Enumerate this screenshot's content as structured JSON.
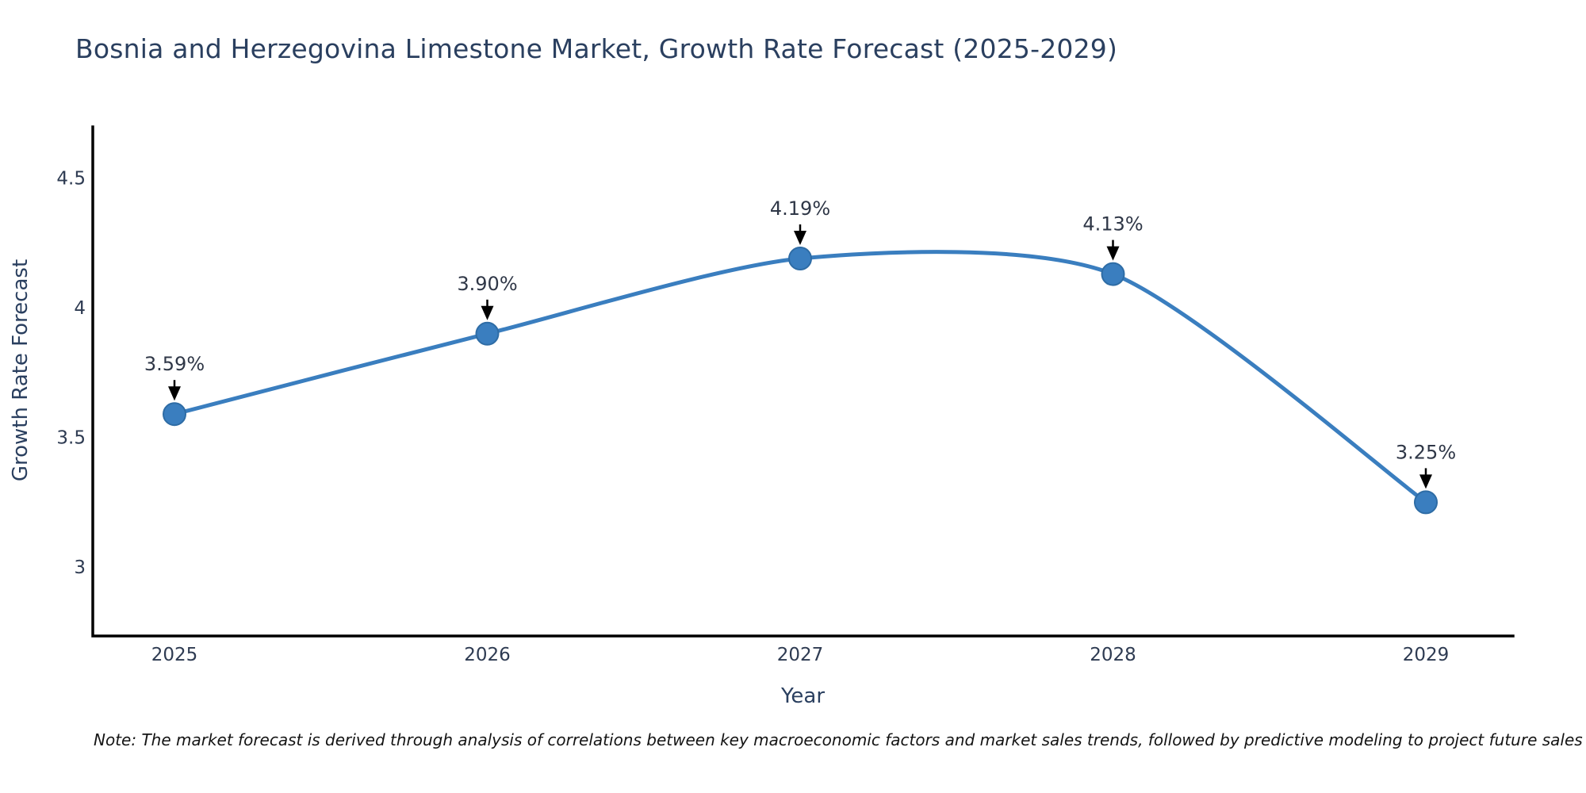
{
  "header": {
    "title": "Bosnia and Herzegovina Limestone Market, Growth Rate Forecast (2025-2029)"
  },
  "chart_data": {
    "type": "line",
    "title": "Bosnia and Herzegovina Limestone Market, Growth Rate Forecast (2025-2029)",
    "xlabel": "Year",
    "ylabel": "Growth Rate Forecast",
    "x": [
      2025,
      2026,
      2027,
      2028,
      2029
    ],
    "values": [
      3.59,
      3.9,
      4.19,
      4.13,
      3.25
    ],
    "point_labels": [
      "3.59%",
      "3.90%",
      "4.19%",
      "4.13%",
      "3.25%"
    ],
    "series_name": "Growth Rate Forecast (%)",
    "yticks": [
      3,
      3.5,
      4,
      4.5
    ],
    "ytick_labels": [
      "3",
      "3.5",
      "4",
      "4.5"
    ],
    "ylim": [
      2.73,
      4.7
    ],
    "grid": false,
    "legend_position": "none",
    "line_color": "#3a7ebf",
    "marker_color": "#3a7ebf",
    "marker_edge_color": "#2e6ca5",
    "arrow_color": "#000000",
    "axis_color": "#000000",
    "note": "Note: The market forecast is derived through analysis of correlations between key macroeconomic factors and market sales trends, followed by predictive modeling to project future sales"
  }
}
